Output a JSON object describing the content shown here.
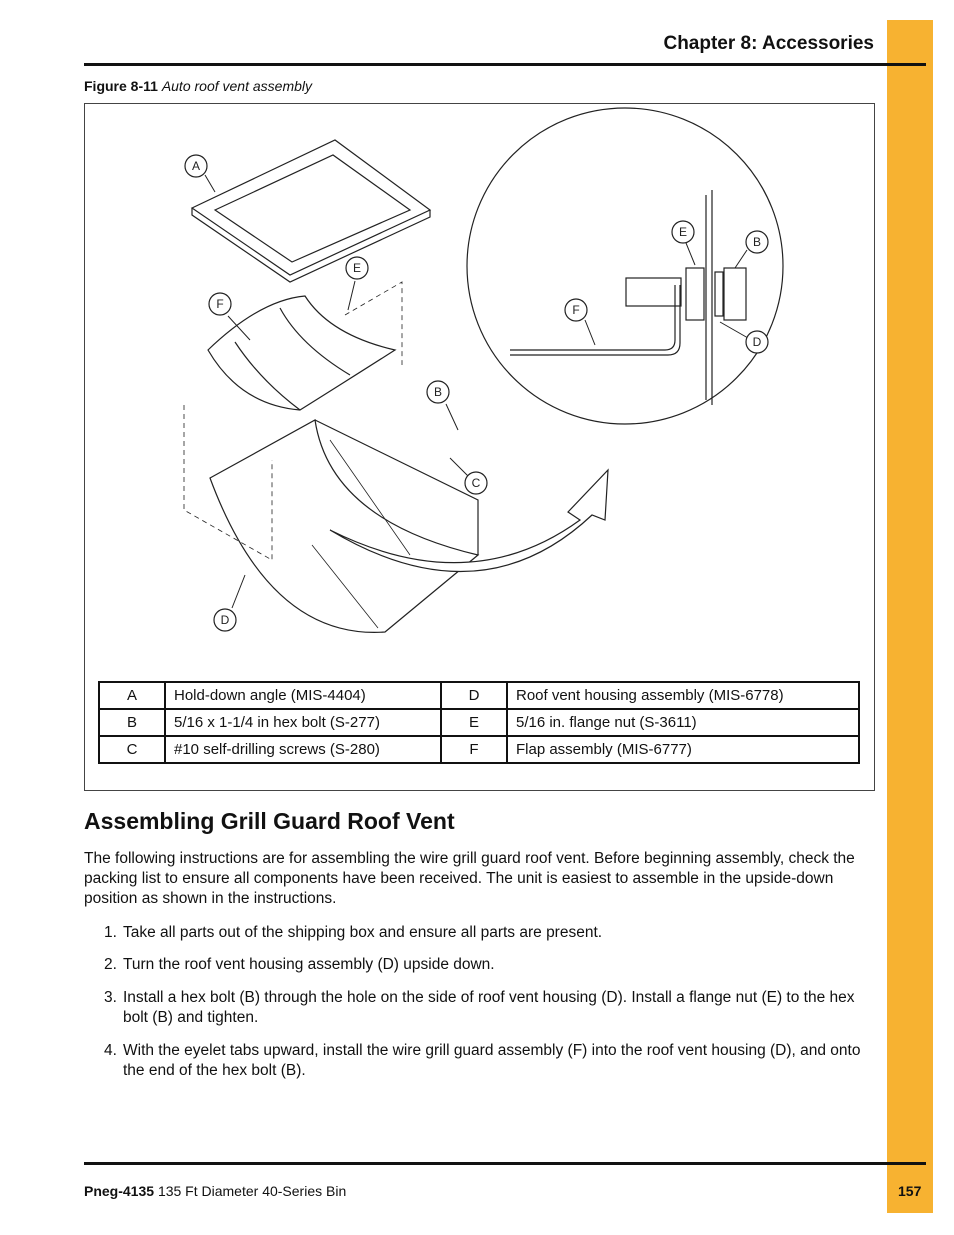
{
  "header": {
    "chapter": "Chapter 8: Accessories"
  },
  "figure": {
    "label": "Figure 8-11",
    "caption": "Auto roof vent assembly",
    "callouts": [
      "A",
      "E",
      "F",
      "B",
      "C",
      "D",
      "E",
      "B",
      "F",
      "D"
    ]
  },
  "table": {
    "rows": [
      [
        "A",
        "Hold-down angle (MIS-4404)",
        "D",
        "Roof vent housing assembly (MIS-6778)"
      ],
      [
        "B",
        "5/16 x 1-1/4 in hex bolt (S-277)",
        "E",
        "5/16 in. flange nut (S-3611)"
      ],
      [
        "C",
        "#10 self-drilling screws (S-280)",
        "F",
        "Flap assembly (MIS-6777)"
      ]
    ]
  },
  "section": {
    "heading": "Assembling Grill Guard Roof Vent",
    "intro": "The following instructions are for assembling the wire grill guard roof vent. Before beginning assembly, check the packing list to ensure all components have been received. The unit is easiest to assemble in the upside-down position as shown in the instructions.",
    "steps": [
      {
        "number": "1.",
        "text": "Take all parts out of the shipping box and ensure all parts are present."
      },
      {
        "number": "2.",
        "text": "Turn the roof vent housing assembly (D) upside down."
      },
      {
        "number": "3.",
        "text": "Install a hex bolt (B) through the hole on the side of roof vent housing (D). Install a flange nut (E) to the hex bolt (B) and tighten."
      },
      {
        "number": "4.",
        "text": "With the eyelet tabs upward, install the wire grill guard assembly (F) into the roof vent housing (D), and onto the end of the hex bolt (B)."
      }
    ]
  },
  "footer": {
    "doc": "Pneg-4135",
    "title": "135 Ft Diameter 40-Series Bin",
    "page": "157"
  }
}
